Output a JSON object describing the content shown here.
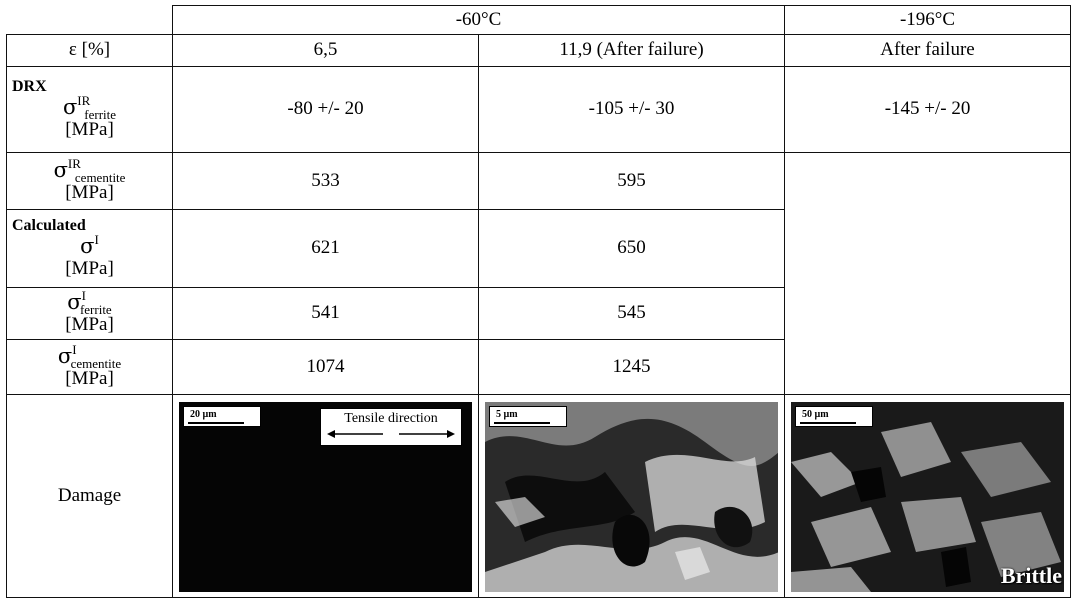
{
  "header": {
    "temp_a": "-60°C",
    "temp_b": "-196°C"
  },
  "strain_row": {
    "label": "ε [%]",
    "col1": "6,5",
    "col2": "11,9 (After failure)",
    "col3": "After failure"
  },
  "drx": {
    "section_label": "DRX",
    "ferrite": {
      "symbol": "σ",
      "sup": "IR",
      "sub": "ferrite",
      "unit": "[MPa]",
      "col1": "-80 +/- 20",
      "col2": "-105 +/- 30",
      "col3": "-145 +/- 20"
    },
    "cementite": {
      "symbol": "σ",
      "sup": "IR",
      "sub": "cementite",
      "unit": "[MPa]",
      "col1": "533",
      "col2": "595"
    }
  },
  "calculated": {
    "section_label": "Calculated",
    "sigma_i": {
      "symbol": "σ",
      "sup": "I",
      "unit": "[MPa]",
      "col1": "621",
      "col2": "650"
    },
    "ferrite": {
      "symbol": "σ",
      "sup": "I",
      "sub": "ferrite",
      "unit": "[MPa]",
      "col1": "541",
      "col2": "545"
    },
    "cementite": {
      "symbol": "σ",
      "sup": "I",
      "sub": "cementite",
      "unit": "[MPa]",
      "col1": "1074",
      "col2": "1245"
    }
  },
  "damage": {
    "label": "Damage",
    "img1": {
      "scale": "20 µm",
      "tensile_label": "Tensile direction"
    },
    "img2": {
      "scale": "5 µm"
    },
    "img3": {
      "scale": "50 µm",
      "overlay": "Brittle"
    }
  }
}
